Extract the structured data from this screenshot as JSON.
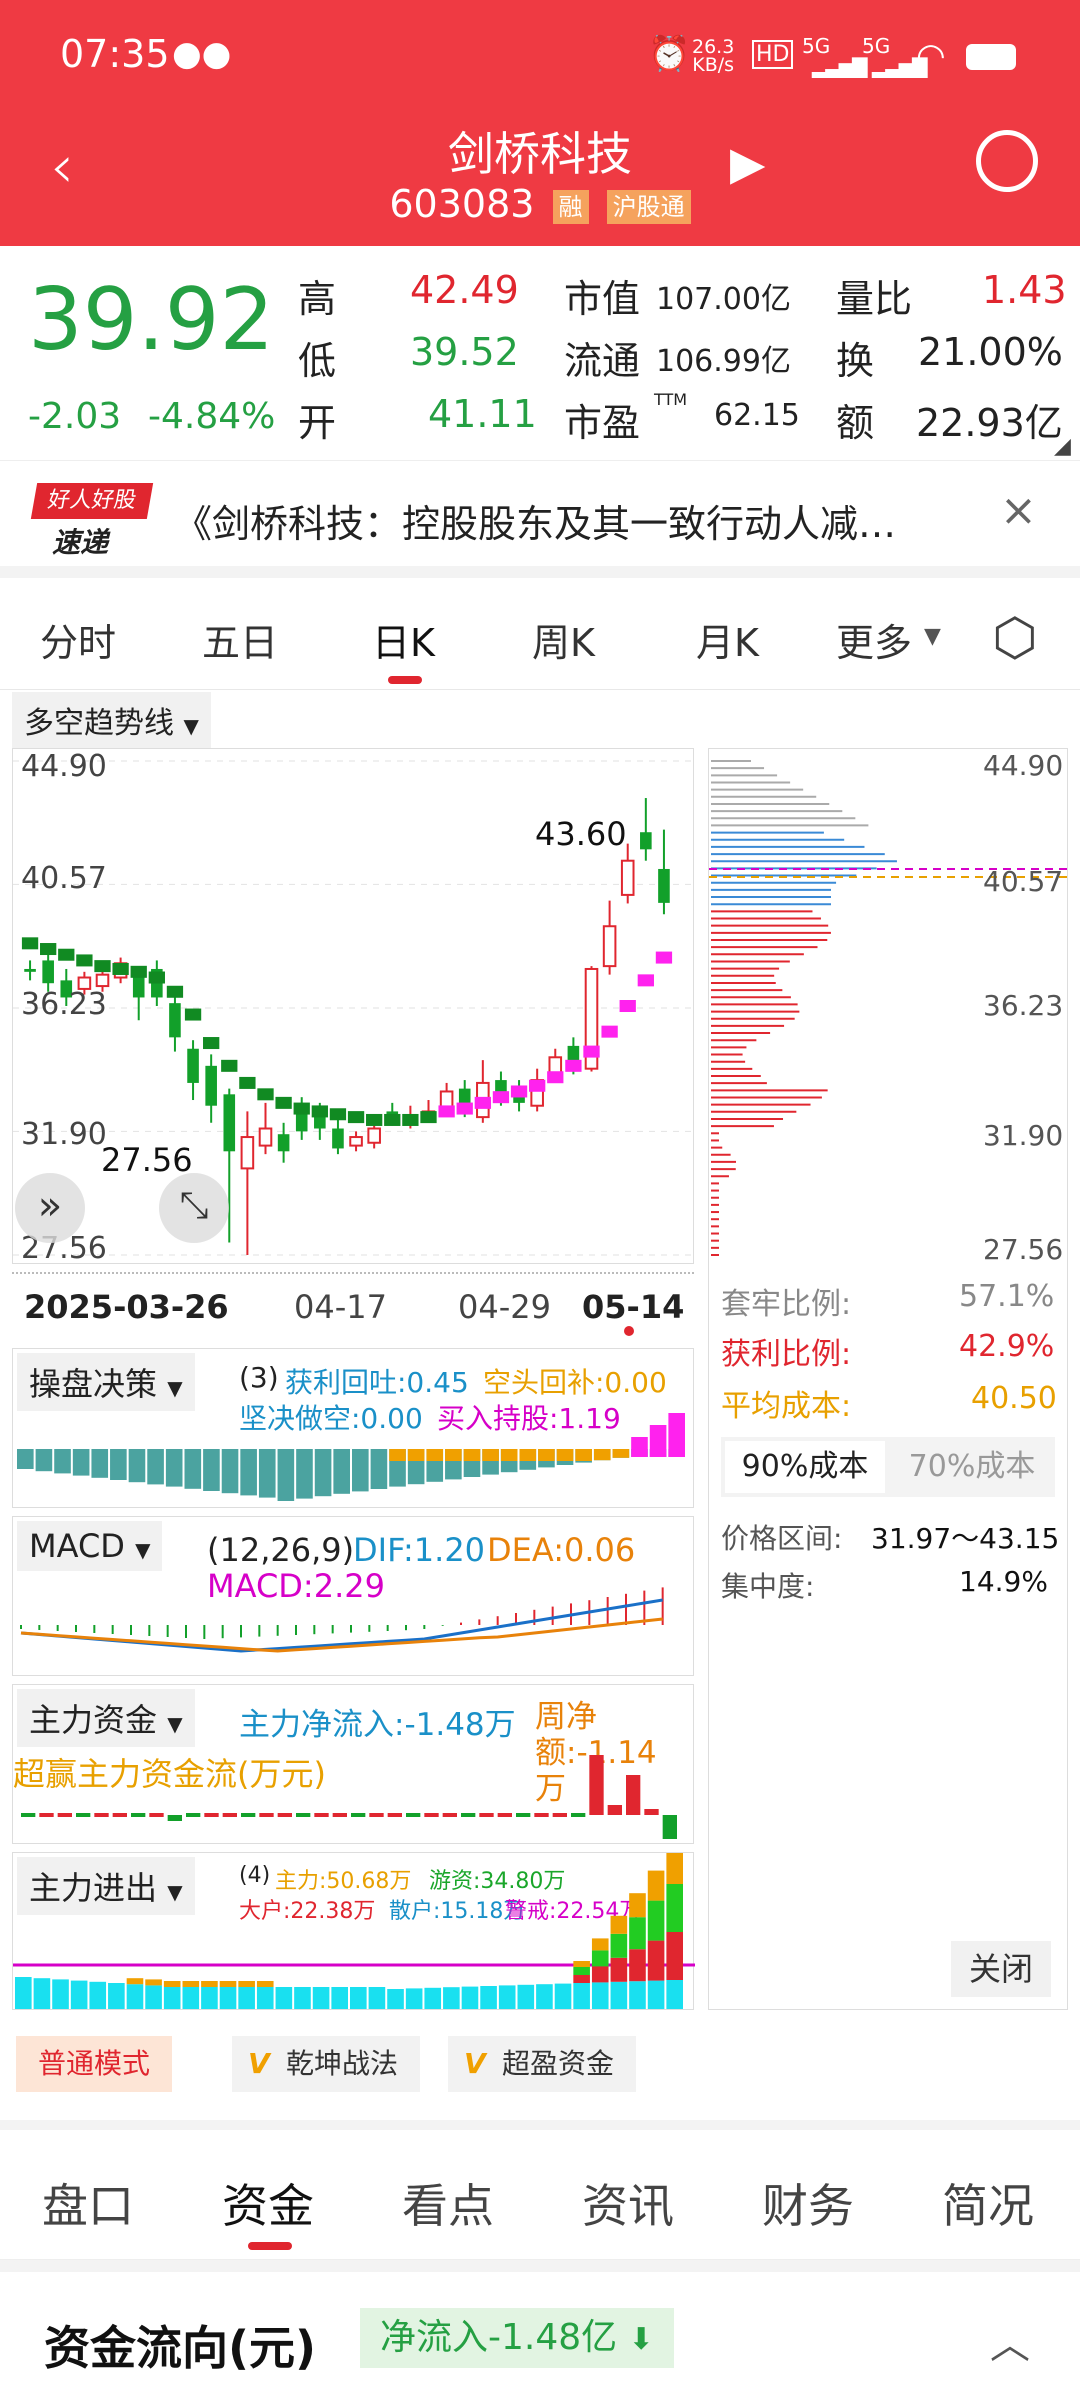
{
  "status": {
    "time": "07:35",
    "net_speed_value": "26.3",
    "net_speed_unit": "KB/s",
    "hd": "HD",
    "sig1": "5G",
    "sig2": "5G"
  },
  "header": {
    "stock_name": "剑桥科技",
    "stock_code": "603083",
    "tag_margin": "融",
    "tag_connect": "沪股通"
  },
  "quote": {
    "price": "39.92",
    "change": "-2.03",
    "change_pct": "-4.84%",
    "high_label": "高",
    "high": "42.49",
    "low_label": "低",
    "low": "39.52",
    "open_label": "开",
    "open": "41.11",
    "mcap_label": "市值",
    "mcap": "107.00亿",
    "float_label": "流通",
    "float": "106.99亿",
    "pe_label": "市盈",
    "pe_sup": "TTM",
    "pe": "62.15",
    "vol_ratio_label": "量比",
    "vol_ratio": "1.43",
    "turnover_label": "换",
    "turnover": "21.00%",
    "amount_label": "额",
    "amount": "22.93亿"
  },
  "news": {
    "logo_top": "好人好股",
    "logo_bottom": "速递",
    "headline": "《剑桥科技：控股股东及其一致行动人减…"
  },
  "chart_tabs": [
    "分时",
    "五日",
    "日K",
    "周K",
    "月K",
    "更多"
  ],
  "chart_active_tab": "日K",
  "indicator_select": "多空趋势线",
  "chart_data": {
    "type": "candlestick",
    "y_ticks": [
      "44.90",
      "40.57",
      "36.23",
      "31.90",
      "27.56"
    ],
    "ylim": [
      27.56,
      44.9
    ],
    "x_ticks": [
      "2025-03-26",
      "04-17",
      "04-29",
      "05-14"
    ],
    "high_annotation": "43.60",
    "low_annotation": "27.56",
    "candles": [
      {
        "o": 37.6,
        "c": 37.5,
        "h": 37.9,
        "l": 37.2
      },
      {
        "o": 37.9,
        "c": 37.1,
        "h": 38.1,
        "l": 36.8
      },
      {
        "o": 37.2,
        "c": 36.6,
        "h": 37.6,
        "l": 36.3
      },
      {
        "o": 36.9,
        "c": 37.3,
        "h": 37.5,
        "l": 36.7
      },
      {
        "o": 37.0,
        "c": 37.4,
        "h": 37.7,
        "l": 36.8
      },
      {
        "o": 37.3,
        "c": 37.8,
        "h": 38.0,
        "l": 37.1
      },
      {
        "o": 37.4,
        "c": 36.6,
        "h": 37.6,
        "l": 35.8
      },
      {
        "o": 37.6,
        "c": 36.6,
        "h": 37.9,
        "l": 36.3
      },
      {
        "o": 36.4,
        "c": 35.2,
        "h": 36.7,
        "l": 34.7
      },
      {
        "o": 34.8,
        "c": 33.6,
        "h": 35.1,
        "l": 33.0
      },
      {
        "o": 34.2,
        "c": 32.8,
        "h": 34.6,
        "l": 32.2
      },
      {
        "o": 33.2,
        "c": 31.2,
        "h": 33.4,
        "l": 28.0
      },
      {
        "o": 30.6,
        "c": 31.7,
        "h": 32.6,
        "l": 27.56
      },
      {
        "o": 31.4,
        "c": 32.0,
        "h": 32.9,
        "l": 31.1
      },
      {
        "o": 31.8,
        "c": 31.2,
        "h": 32.2,
        "l": 30.8
      },
      {
        "o": 32.6,
        "c": 31.9,
        "h": 33.1,
        "l": 31.6
      },
      {
        "o": 32.5,
        "c": 32.0,
        "h": 32.9,
        "l": 31.6
      },
      {
        "o": 32.0,
        "c": 31.3,
        "h": 32.4,
        "l": 31.1
      },
      {
        "o": 31.4,
        "c": 31.7,
        "h": 31.9,
        "l": 31.2
      },
      {
        "o": 31.5,
        "c": 32.0,
        "h": 32.3,
        "l": 31.3
      },
      {
        "o": 32.6,
        "c": 32.4,
        "h": 32.9,
        "l": 32.1
      },
      {
        "o": 32.4,
        "c": 32.4,
        "h": 32.8,
        "l": 32.0
      },
      {
        "o": 32.6,
        "c": 32.6,
        "h": 33.0,
        "l": 32.2
      },
      {
        "o": 32.7,
        "c": 33.3,
        "h": 33.6,
        "l": 32.5
      },
      {
        "o": 33.4,
        "c": 32.8,
        "h": 33.7,
        "l": 32.4
      },
      {
        "o": 32.4,
        "c": 33.6,
        "h": 34.4,
        "l": 32.2
      },
      {
        "o": 33.7,
        "c": 33.1,
        "h": 34.0,
        "l": 32.8
      },
      {
        "o": 33.4,
        "c": 32.9,
        "h": 33.7,
        "l": 32.6
      },
      {
        "o": 32.8,
        "c": 33.7,
        "h": 34.1,
        "l": 32.6
      },
      {
        "o": 33.9,
        "c": 34.5,
        "h": 34.8,
        "l": 33.6
      },
      {
        "o": 34.9,
        "c": 34.3,
        "h": 35.2,
        "l": 33.9
      },
      {
        "o": 34.1,
        "c": 37.6,
        "h": 37.7,
        "l": 34.0
      },
      {
        "o": 37.7,
        "c": 39.1,
        "h": 40.0,
        "l": 37.4
      },
      {
        "o": 40.2,
        "c": 41.4,
        "h": 42.0,
        "l": 39.9
      },
      {
        "o": 42.4,
        "c": 41.8,
        "h": 43.6,
        "l": 41.4
      },
      {
        "o": 41.11,
        "c": 39.92,
        "h": 42.49,
        "l": 39.52
      }
    ],
    "trend_line": [
      38.5,
      38.3,
      38.1,
      37.9,
      37.7,
      37.6,
      37.5,
      37.3,
      36.8,
      36.0,
      35.0,
      34.2,
      33.6,
      33.2,
      32.9,
      32.7,
      32.6,
      32.5,
      32.4,
      32.3,
      32.3,
      32.3,
      32.4,
      32.6,
      32.7,
      32.9,
      33.1,
      33.3,
      33.5,
      33.8,
      34.2,
      34.7,
      35.4,
      36.3,
      37.2,
      38.0
    ]
  },
  "chip": {
    "ticks": [
      "44.90",
      "40.57",
      "36.23",
      "31.90",
      "27.56"
    ],
    "trap_label": "套牢比例:",
    "trap": "57.1%",
    "profit_label": "获利比例:",
    "profit": "42.9%",
    "avg_label": "平均成本:",
    "avg": "40.50",
    "btn90": "90%成本",
    "btn70": "70%成本",
    "range_label": "价格区间:",
    "range": "31.97～43.15",
    "conc_label": "集中度:",
    "conc": "14.9%",
    "close": "关闭"
  },
  "ind1": {
    "select": "操盘决策",
    "period": "(3)",
    "l1": "获利回吐:0.45",
    "l2": "空头回补:0.00",
    "l3": "坚决做空:0.00",
    "l4": "买入持股:1.19"
  },
  "ind2": {
    "select": "MACD",
    "params": "(12,26,9)",
    "dif": "DIF:1.20",
    "dea": "DEA:0.06",
    "macd": "MACD:2.29"
  },
  "ind3": {
    "select": "主力资金",
    "net": "主力净流入:-1.48万",
    "week": "周净额:-1.14万",
    "sub": "超赢主力资金流(万元)"
  },
  "ind4": {
    "select": "主力进出",
    "period": "(4)",
    "main": "主力:50.68万",
    "hot": "游资:34.80万",
    "big": "大户:22.38万",
    "retail": "散户:15.18万",
    "alert": "警戒:22.54万"
  },
  "modes": [
    "普通模式",
    "乾坤战法",
    "超盈资金"
  ],
  "bottom_tabs": [
    "盘口",
    "资金",
    "看点",
    "资讯",
    "财务",
    "简况"
  ],
  "bottom_active": "资金",
  "flow": {
    "title": "资金流向(元)",
    "net": "净流入-1.48亿"
  },
  "colors": {
    "red": "#e0262f",
    "green": "#25a043",
    "header": "#ef3a43",
    "magenta": "#ff22ee",
    "teal": "#4ba3a0"
  }
}
